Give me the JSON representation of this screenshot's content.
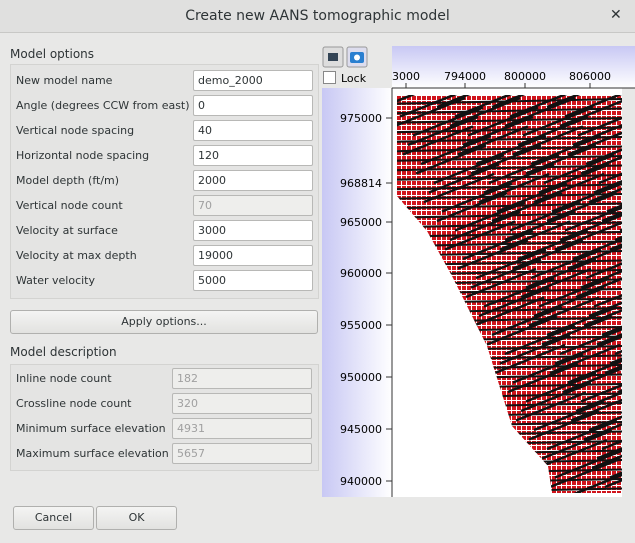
{
  "dialog": {
    "title": "Create new AANS tomographic model"
  },
  "model_options": {
    "title": "Model options",
    "fields": [
      {
        "label": "New model name",
        "value": "demo_2000"
      },
      {
        "label": "Angle (degrees CCW from east)",
        "value": "0"
      },
      {
        "label": "Vertical node spacing",
        "value": "40"
      },
      {
        "label": "Horizontal node spacing",
        "value": "120"
      },
      {
        "label": "Model depth (ft/m)",
        "value": "2000"
      },
      {
        "label": "Vertical node count",
        "value": "70",
        "disabled": true
      },
      {
        "label": "Velocity at surface",
        "value": "3000"
      },
      {
        "label": "Velocity at max depth",
        "value": "19000"
      },
      {
        "label": "Water velocity",
        "value": "5000"
      }
    ]
  },
  "apply_button": "Apply options...",
  "model_description": {
    "title": "Model description",
    "fields": [
      {
        "label": "Inline node count",
        "value": "182",
        "disabled": true
      },
      {
        "label": "Crossline node count",
        "value": "320",
        "disabled": true
      },
      {
        "label": "Minimum surface elevation",
        "value": "4931",
        "disabled": true
      },
      {
        "label": "Maximum surface elevation",
        "value": "5657",
        "disabled": true
      }
    ]
  },
  "buttons": {
    "cancel": "Cancel",
    "ok": "OK"
  },
  "preview": {
    "lock": "Lock",
    "x_labels": [
      "3000",
      "794000",
      "800000",
      "806000"
    ],
    "y_labels": [
      "975000",
      "968814",
      "965000",
      "960000",
      "955000",
      "950000",
      "945000",
      "940000"
    ]
  }
}
